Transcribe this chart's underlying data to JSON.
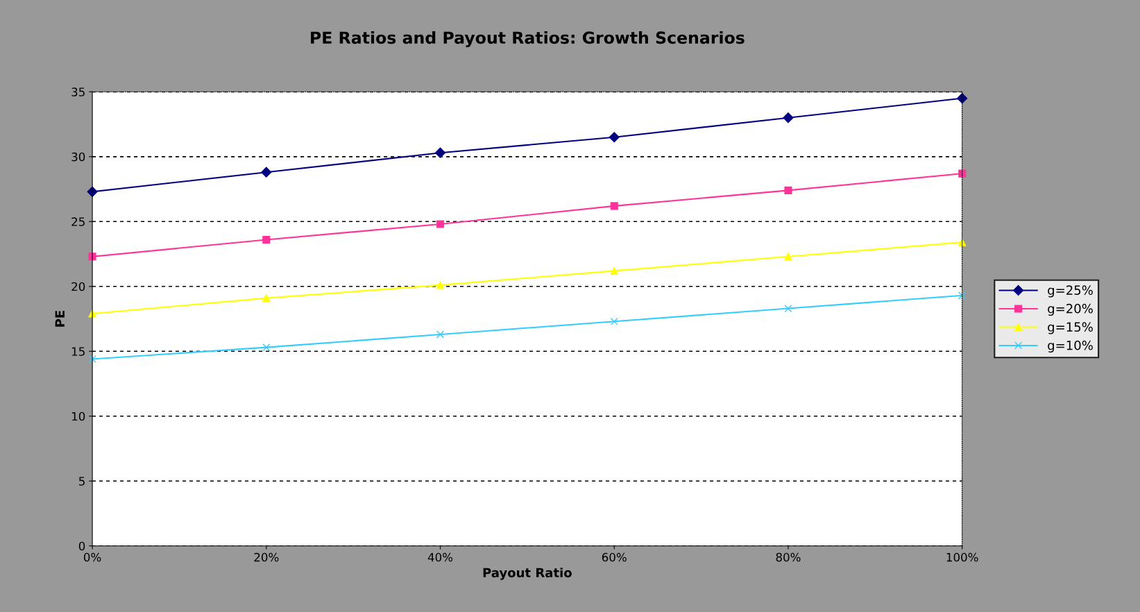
{
  "chart_data": {
    "type": "line",
    "title": "PE Ratios and Payout Ratios: Growth Scenarios",
    "xlabel": "Payout Ratio",
    "ylabel": "PE",
    "categories": [
      "0%",
      "20%",
      "40%",
      "60%",
      "80%",
      "100%"
    ],
    "series": [
      {
        "name": "g=25%",
        "color": "#000080",
        "marker": "diamond",
        "values": [
          27.3,
          28.8,
          30.3,
          31.5,
          33.0,
          34.5
        ]
      },
      {
        "name": "g=20%",
        "color": "#ff3399",
        "marker": "square",
        "values": [
          22.3,
          23.6,
          24.8,
          26.2,
          27.4,
          28.7
        ]
      },
      {
        "name": "g=15%",
        "color": "#ffff00",
        "marker": "triangle",
        "values": [
          17.9,
          19.1,
          20.1,
          21.2,
          22.3,
          23.4
        ]
      },
      {
        "name": "g=10%",
        "color": "#33ccff",
        "marker": "cross",
        "values": [
          14.4,
          15.3,
          16.3,
          17.3,
          18.3,
          19.3
        ]
      }
    ],
    "ylim": [
      0,
      35
    ],
    "yticks": [
      0,
      5,
      10,
      15,
      20,
      25,
      30,
      35
    ],
    "grid": "y",
    "legend": "right",
    "line_style": "solid"
  }
}
